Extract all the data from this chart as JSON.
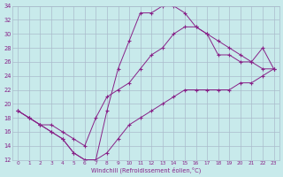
{
  "xlabel": "Windchill (Refroidissement éolien,°C)",
  "background_color": "#c8eaeb",
  "grid_color": "#aabbcc",
  "line_color": "#882288",
  "xlim": [
    -0.5,
    23.5
  ],
  "ylim": [
    12,
    34
  ],
  "xticks": [
    0,
    1,
    2,
    3,
    4,
    5,
    6,
    7,
    8,
    9,
    10,
    11,
    12,
    13,
    14,
    15,
    16,
    17,
    18,
    19,
    20,
    21,
    22,
    23
  ],
  "yticks": [
    12,
    14,
    16,
    18,
    20,
    22,
    24,
    26,
    28,
    30,
    32,
    34
  ],
  "hours": [
    0,
    1,
    2,
    3,
    4,
    5,
    6,
    7,
    8,
    9,
    10,
    11,
    12,
    13,
    14,
    15,
    16,
    17,
    18,
    19,
    20,
    21,
    22,
    23
  ],
  "line_top": [
    19,
    18,
    17,
    16,
    15,
    13,
    12,
    12,
    19,
    25,
    29,
    33,
    33,
    34,
    34,
    33,
    31,
    30,
    29,
    28,
    27,
    26,
    25,
    25
  ],
  "line_mid": [
    19,
    18,
    17,
    17,
    16,
    15,
    14,
    18,
    21,
    22,
    23,
    25,
    27,
    28,
    30,
    31,
    31,
    30,
    27,
    27,
    26,
    26,
    28,
    25
  ],
  "line_bot": [
    19,
    18,
    17,
    16,
    15,
    13,
    12,
    12,
    13,
    15,
    17,
    18,
    19,
    20,
    21,
    22,
    22,
    22,
    22,
    22,
    23,
    23,
    24,
    25
  ]
}
